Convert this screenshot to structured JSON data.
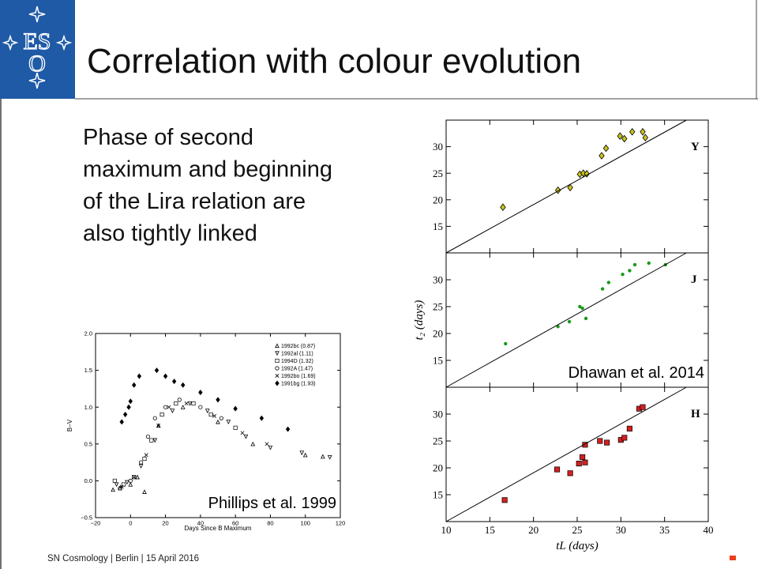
{
  "header": {
    "logo": [
      "ES",
      "O"
    ],
    "title": "Correlation with colour evolution"
  },
  "body": {
    "lines": [
      "Phase of second",
      "maximum and beginning",
      "of the Lira relation are",
      "also tightly linked"
    ]
  },
  "footer": {
    "text": "SN Cosmology | Berlin | 15 April 2016"
  },
  "chart_data": [
    {
      "type": "scatter",
      "panel_label": "Y",
      "xlim": [
        10,
        40
      ],
      "ylim": [
        10,
        35
      ],
      "xticks": [
        10,
        15,
        20,
        25,
        30,
        35,
        40
      ],
      "yticks": [
        15,
        20,
        25,
        30
      ],
      "series": [
        {
          "color": "#c9c41c",
          "marker": "diamond",
          "x": [
            16.5,
            22.8,
            24.2,
            25.3,
            25.7,
            26.1,
            27.8,
            28.3,
            29.9,
            30.4,
            31.3,
            32.5,
            32.8
          ],
          "values": [
            18.6,
            21.8,
            22.3,
            24.8,
            25,
            24.9,
            28.3,
            29.7,
            32,
            31.5,
            32.8,
            32.8,
            31.7
          ]
        },
        {
          "color": "#000000",
          "style": "line",
          "x": [
            10,
            37.5
          ],
          "values": [
            10,
            35
          ]
        }
      ]
    },
    {
      "type": "scatter",
      "panel_label": "J",
      "ylabel": "t₂ (days)",
      "annotation": "Dhawan et al. 2014",
      "xlim": [
        10,
        40
      ],
      "ylim": [
        10,
        35
      ],
      "xticks": [
        10,
        15,
        20,
        25,
        30,
        35,
        40
      ],
      "yticks": [
        15,
        20,
        25,
        30
      ],
      "series": [
        {
          "color": "#1a9a1a",
          "marker": "dot",
          "x": [
            16.8,
            22.8,
            24.1,
            25.3,
            25.6,
            26,
            27.9,
            28.6,
            30.2,
            31,
            31.6,
            33.2,
            35.1
          ],
          "values": [
            18.1,
            21.3,
            22.2,
            25,
            24.7,
            22.8,
            28.3,
            29.5,
            31,
            31.7,
            32.8,
            33.1,
            32.8
          ]
        },
        {
          "color": "#000000",
          "style": "line",
          "x": [
            10,
            37.5
          ],
          "values": [
            10,
            35
          ]
        }
      ]
    },
    {
      "type": "scatter",
      "panel_label": "H",
      "xlabel": "tL (days)",
      "xlim": [
        10,
        40
      ],
      "ylim": [
        10,
        35
      ],
      "xticks": [
        10,
        15,
        20,
        25,
        30,
        35,
        40
      ],
      "yticks": [
        15,
        20,
        25,
        30
      ],
      "series": [
        {
          "color": "#d42020",
          "marker": "square",
          "x": [
            16.7,
            22.7,
            24.2,
            25.2,
            25.6,
            25.9,
            25.9,
            27.6,
            28.4,
            30,
            30.4,
            31,
            32.1,
            32.5
          ],
          "values": [
            14,
            19.7,
            19,
            20.8,
            22,
            24.3,
            21,
            25,
            24.7,
            25.2,
            25.6,
            27.3,
            31,
            31.3
          ]
        },
        {
          "color": "#000000",
          "style": "line",
          "x": [
            10,
            37.5
          ],
          "values": [
            10,
            35
          ]
        }
      ]
    },
    {
      "type": "scatter",
      "xlabel": "Days Since B Maximum",
      "ylabel": "B−V",
      "annotation": "Phillips et al. 1999",
      "legend": "upper right",
      "xlim": [
        -20,
        120
      ],
      "ylim": [
        -0.5,
        2.0
      ],
      "xticks": [
        {
          "value": -20,
          "label": "−20"
        },
        0,
        20,
        40,
        60,
        80,
        100,
        120
      ],
      "yticks": [
        {
          "value": -0.5,
          "label": "−0.5"
        },
        {
          "value": 0,
          "label": "0.0"
        },
        0.5,
        {
          "value": 1,
          "label": "1.0"
        },
        1.5,
        {
          "value": 2,
          "label": "2.0"
        }
      ],
      "series": [
        {
          "name": "1992bc (0.87)",
          "color": "#000000",
          "marker": "triangle-up",
          "x": [
            -10,
            -6,
            0,
            4,
            8,
            16,
            30,
            50,
            70,
            100,
            110
          ],
          "values": [
            -0.12,
            -0.1,
            -0.05,
            0.05,
            -0.15,
            0.75,
            1.0,
            0.8,
            0.5,
            0.35,
            0.33
          ]
        },
        {
          "name": "1992al (1.11)",
          "color": "#000000",
          "marker": "triangle-down",
          "x": [
            -8,
            -2,
            6,
            14,
            24,
            34,
            44,
            56,
            66,
            80,
            98,
            114
          ],
          "values": [
            -0.05,
            -0.02,
            0.2,
            0.55,
            0.95,
            1.05,
            0.95,
            0.8,
            0.6,
            0.45,
            0.38,
            0.32
          ]
        },
        {
          "name": "1994D (1.32)",
          "color": "#000000",
          "marker": "square",
          "x": [
            -9,
            -4,
            2,
            8,
            12,
            18,
            26,
            36,
            46,
            60
          ],
          "values": [
            0,
            -0.05,
            0.05,
            0.3,
            0.55,
            0.9,
            1.05,
            1.05,
            0.9,
            0.72
          ]
        },
        {
          "name": "1992A (1.47)",
          "color": "#000000",
          "marker": "circle",
          "x": [
            -6,
            0,
            6,
            10,
            14,
            20,
            28,
            40,
            52
          ],
          "values": [
            -0.1,
            0.0,
            0.25,
            0.6,
            0.85,
            1.0,
            1.1,
            1.0,
            0.85
          ]
        },
        {
          "name": "1992bo (1.69)",
          "color": "#000000",
          "marker": "x",
          "x": [
            -5,
            2,
            9,
            16,
            22,
            32,
            48,
            64,
            78
          ],
          "values": [
            -0.08,
            0.05,
            0.35,
            0.75,
            1.0,
            1.05,
            0.88,
            0.65,
            0.5
          ]
        },
        {
          "name": "1991bg (1.93)",
          "color": "#000000",
          "marker": "filled-diamond",
          "x": [
            -5,
            -3,
            -1,
            0,
            2,
            5,
            15,
            20,
            25,
            30,
            40,
            50,
            60,
            75,
            90
          ],
          "values": [
            0.8,
            0.9,
            1.0,
            1.08,
            1.3,
            1.42,
            1.5,
            1.42,
            1.35,
            1.3,
            1.2,
            1.1,
            0.98,
            0.85,
            0.7
          ]
        }
      ]
    }
  ]
}
